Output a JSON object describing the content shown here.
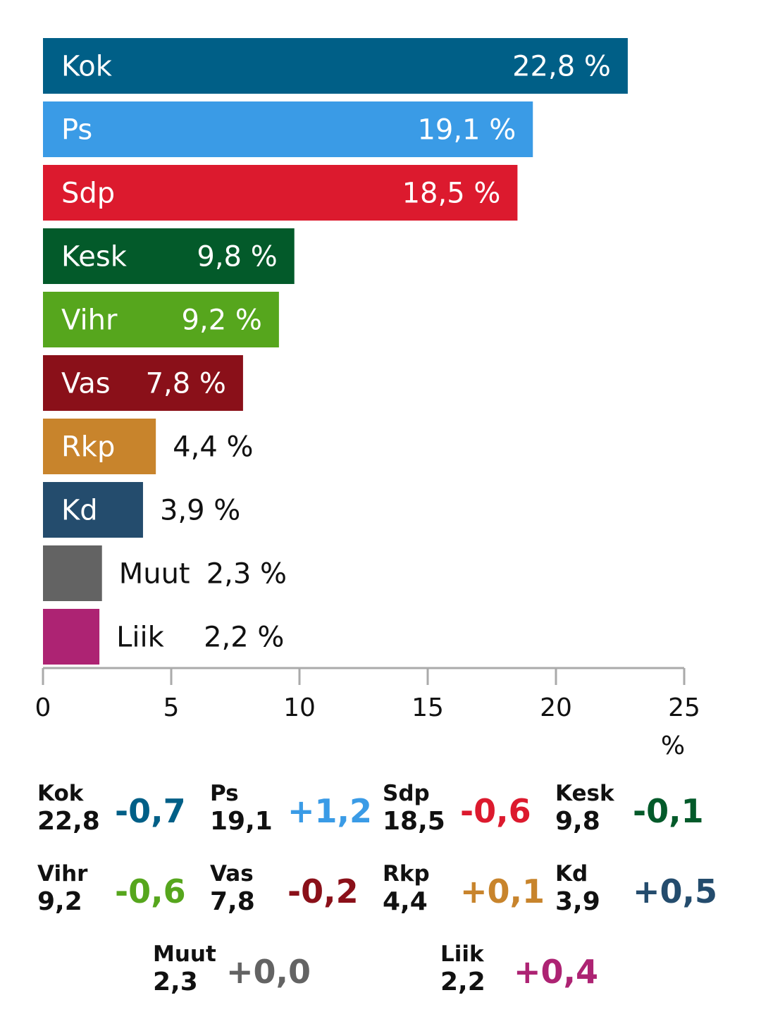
{
  "chart_data": {
    "type": "bar",
    "orientation": "horizontal",
    "categories": [
      "Kok",
      "Ps",
      "Sdp",
      "Kesk",
      "Vihr",
      "Vas",
      "Rkp",
      "Kd",
      "Muut",
      "Liik"
    ],
    "values": [
      22.8,
      19.1,
      18.5,
      9.8,
      9.2,
      7.8,
      4.4,
      3.9,
      2.3,
      2.2
    ],
    "value_labels": [
      "22,8 %",
      "19,1 %",
      "18,5 %",
      "9,8 %",
      "9,2 %",
      "7,8 %",
      "4,4 %",
      "3,9 %",
      "2,3 %",
      "2,2 %"
    ],
    "colors": [
      "#005f87",
      "#3a9be6",
      "#dc1a2e",
      "#035a2a",
      "#56a61d",
      "#8a1019",
      "#c8842c",
      "#244c6d",
      "#636363",
      "#ad2373"
    ],
    "xlim": [
      0,
      25
    ],
    "xticks": [
      "0",
      "5",
      "10",
      "15",
      "20",
      "25"
    ],
    "xlabel": "%",
    "grid": false
  },
  "summary": [
    {
      "party": "Kok",
      "share": "22,8",
      "change": "-0,7",
      "color": "#005f87"
    },
    {
      "party": "Ps",
      "share": "19,1",
      "change": "+1,2",
      "color": "#3a9be6"
    },
    {
      "party": "Sdp",
      "share": "18,5",
      "change": "-0,6",
      "color": "#dc1a2e"
    },
    {
      "party": "Kesk",
      "share": "9,8",
      "change": "-0,1",
      "color": "#035a2a"
    },
    {
      "party": "Vihr",
      "share": "9,2",
      "change": "-0,6",
      "color": "#56a61d"
    },
    {
      "party": "Vas",
      "share": "7,8",
      "change": "-0,2",
      "color": "#8a1019"
    },
    {
      "party": "Rkp",
      "share": "4,4",
      "change": "+0,1",
      "color": "#c8842c"
    },
    {
      "party": "Kd",
      "share": "3,9",
      "change": "+0,5",
      "color": "#244c6d"
    },
    {
      "party": "Muut",
      "share": "2,3",
      "change": "+0,0",
      "color": "#636363"
    },
    {
      "party": "Liik",
      "share": "2,2",
      "change": "+0,4",
      "color": "#ad2373"
    }
  ]
}
